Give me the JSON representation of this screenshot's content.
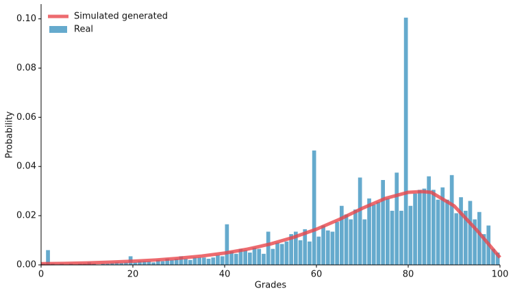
{
  "chart_data": {
    "type": "histogram",
    "xlabel": "Grades",
    "ylabel": "Probability",
    "xlim": [
      0,
      100
    ],
    "ylim": [
      0,
      0.106
    ],
    "xticks": [
      0,
      20,
      40,
      60,
      80,
      100
    ],
    "yticks": [
      {
        "value": 0,
        "label": "0.00"
      },
      0.02,
      0.04,
      0.06,
      0.08,
      {
        "value": 0.1,
        "label": "0.10"
      }
    ],
    "legend": "upper left",
    "bins": [
      0,
      1,
      2,
      3,
      4,
      5,
      6,
      7,
      8,
      9,
      10,
      11,
      12,
      13,
      14,
      15,
      16,
      17,
      18,
      19,
      20,
      21,
      22,
      23,
      24,
      25,
      26,
      27,
      28,
      29,
      30,
      31,
      32,
      33,
      34,
      35,
      36,
      37,
      38,
      39,
      40,
      41,
      42,
      43,
      44,
      45,
      46,
      47,
      48,
      49,
      50,
      51,
      52,
      53,
      54,
      55,
      56,
      57,
      58,
      59,
      60,
      61,
      62,
      63,
      64,
      65,
      66,
      67,
      68,
      69,
      70,
      71,
      72,
      73,
      74,
      75,
      76,
      77,
      78,
      79,
      80,
      81,
      82,
      83,
      84,
      85,
      86,
      87,
      88,
      89,
      90,
      91,
      92,
      93,
      94,
      95,
      96,
      97,
      98,
      99,
      100
    ],
    "series": [
      {
        "name": "Real",
        "color": "#4a9bc4",
        "values": [
          0.0005,
          0.006,
          0.0005,
          0,
          0.0005,
          0,
          0.0005,
          0,
          0.0005,
          0.0005,
          0.001,
          0.0005,
          0,
          0.0005,
          0.0005,
          0.0008,
          0.001,
          0.0008,
          0.001,
          0.0035,
          0.001,
          0.0015,
          0.0015,
          0.0015,
          0.001,
          0.002,
          0.0015,
          0.0025,
          0.002,
          0.0025,
          0.0035,
          0.0025,
          0.002,
          0.003,
          0.003,
          0.003,
          0.0025,
          0.003,
          0.004,
          0.0035,
          0.0165,
          0.0055,
          0.0045,
          0.0065,
          0.006,
          0.005,
          0.007,
          0.0065,
          0.0045,
          0.0135,
          0.0065,
          0.009,
          0.0085,
          0.0095,
          0.0125,
          0.0135,
          0.01,
          0.0145,
          0.0095,
          0.0465,
          0.0115,
          0.016,
          0.014,
          0.0135,
          0.0175,
          0.024,
          0.0205,
          0.0185,
          0.0225,
          0.0355,
          0.0185,
          0.027,
          0.0245,
          0.0255,
          0.0345,
          0.027,
          0.022,
          0.0375,
          0.022,
          0.1005,
          0.024,
          0.029,
          0.0305,
          0.031,
          0.036,
          0.0305,
          0.0265,
          0.0315,
          0.0265,
          0.0365,
          0.021,
          0.0275,
          0.022,
          0.026,
          0.0185,
          0.0215,
          0.0125,
          0.016,
          0.0065,
          0.005
        ]
      },
      {
        "name": "Simulated generated",
        "type": "line",
        "color": "#e8464b",
        "x": [
          0,
          5,
          10,
          15,
          20,
          25,
          30,
          35,
          40,
          45,
          50,
          55,
          60,
          65,
          70,
          75,
          80,
          83,
          85,
          90,
          95,
          100
        ],
        "values": [
          0.0005,
          0.0006,
          0.0008,
          0.0011,
          0.0015,
          0.002,
          0.0027,
          0.0036,
          0.0048,
          0.0064,
          0.0085,
          0.0112,
          0.0145,
          0.0185,
          0.023,
          0.027,
          0.0295,
          0.0298,
          0.0295,
          0.024,
          0.014,
          0.003
        ]
      }
    ]
  }
}
